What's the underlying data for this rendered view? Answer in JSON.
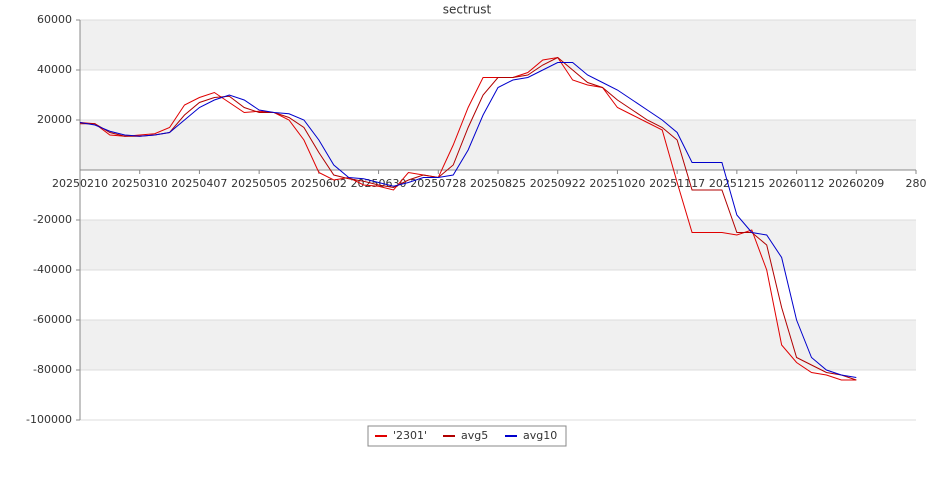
{
  "chart_data": {
    "type": "line",
    "title": "sectrust",
    "x": [
      0,
      5,
      10,
      15,
      20,
      25,
      30,
      35,
      40,
      45,
      50,
      55,
      60,
      65,
      70,
      75,
      80,
      85,
      90,
      95,
      100,
      105,
      110,
      115,
      120,
      125,
      130,
      135,
      140,
      145,
      150,
      155,
      160,
      165,
      170,
      175,
      180,
      185,
      190,
      195,
      200,
      205,
      210,
      215,
      220,
      225,
      230,
      235,
      240,
      245,
      250,
      255,
      260
    ],
    "xlim": [
      0,
      280
    ],
    "xticks": [
      {
        "value": 0,
        "label": "20250210"
      },
      {
        "value": 20,
        "label": "20250310"
      },
      {
        "value": 40,
        "label": "20250407"
      },
      {
        "value": 60,
        "label": "20250505"
      },
      {
        "value": 80,
        "label": "20250602"
      },
      {
        "value": 100,
        "label": "20250630"
      },
      {
        "value": 120,
        "label": "20250728"
      },
      {
        "value": 140,
        "label": "20250825"
      },
      {
        "value": 160,
        "label": "20250922"
      },
      {
        "value": 180,
        "label": "20251020"
      },
      {
        "value": 200,
        "label": "20251117"
      },
      {
        "value": 220,
        "label": "20251215"
      },
      {
        "value": 240,
        "label": "20260112"
      },
      {
        "value": 260,
        "label": "20260209"
      },
      280
    ],
    "ylim": [
      -100000,
      60000
    ],
    "yticks": [
      60000,
      40000,
      20000,
      -20000,
      -40000,
      -60000,
      -80000,
      -100000
    ],
    "grid": true,
    "legend": "bottom",
    "series": [
      {
        "name": "'2301'",
        "color": "#e00000",
        "values": [
          19000,
          18500,
          14000,
          13500,
          14000,
          14500,
          17000,
          26000,
          29000,
          31000,
          27000,
          23000,
          23500,
          23000,
          20000,
          12000,
          -1000,
          -4000,
          -3000,
          -6000,
          -6500,
          -8000,
          -1000,
          -2000,
          -3000,
          10000,
          25000,
          37000,
          37000,
          37000,
          39000,
          44000,
          45000,
          36000,
          34000,
          33000,
          25000,
          22000,
          19000,
          16000,
          -5000,
          -25000,
          -25000,
          -25000,
          -26000,
          -24000,
          -40000,
          -70000,
          -77000,
          -81000,
          -82000,
          -84000,
          -84000
        ]
      },
      {
        "name": "avg5",
        "color": "#b00000",
        "values": [
          18500,
          18500,
          15000,
          13500,
          13500,
          14000,
          15000,
          22000,
          27000,
          29000,
          29500,
          25000,
          23000,
          23000,
          21000,
          17000,
          7000,
          -2000,
          -3500,
          -4500,
          -6000,
          -7000,
          -4000,
          -2000,
          -3000,
          2000,
          17000,
          30000,
          37000,
          37000,
          38000,
          42000,
          45000,
          40000,
          35000,
          33000,
          28000,
          24000,
          20000,
          17000,
          12000,
          -8000,
          -8000,
          -8000,
          -25000,
          -25000,
          -30000,
          -55000,
          -75000,
          -78000,
          -81000,
          -82000,
          -84000
        ]
      },
      {
        "name": "avg10",
        "color": "#0000cc",
        "values": [
          19000,
          18000,
          15500,
          14000,
          13500,
          14000,
          15000,
          20000,
          25000,
          28000,
          30000,
          28000,
          24000,
          23000,
          22500,
          20000,
          12000,
          2000,
          -3000,
          -3500,
          -5000,
          -6500,
          -5000,
          -3000,
          -3000,
          -2000,
          8000,
          22000,
          33000,
          36000,
          37000,
          40000,
          43000,
          43000,
          38000,
          35000,
          32000,
          28000,
          24000,
          20000,
          15000,
          3000,
          3000,
          3000,
          -18000,
          -25000,
          -26000,
          -35000,
          -60000,
          -75000,
          -80000,
          -82000,
          -83000
        ]
      }
    ]
  }
}
